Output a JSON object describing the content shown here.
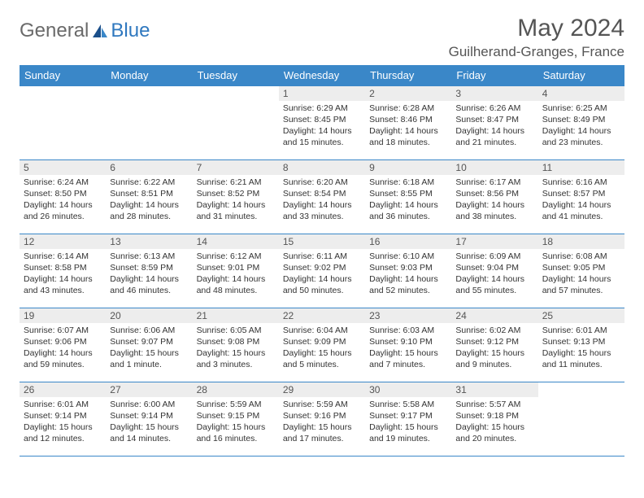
{
  "brand": {
    "part1": "General",
    "part2": "Blue"
  },
  "title": "May 2024",
  "location": "Guilherand-Granges, France",
  "colors": {
    "header_bg": "#3a87c8",
    "header_text": "#ffffff",
    "daynum_bg": "#ededed",
    "border": "#3a87c8",
    "brand_accent": "#2f78bf",
    "text": "#333333"
  },
  "calendar": {
    "type": "table",
    "day_labels": [
      "Sunday",
      "Monday",
      "Tuesday",
      "Wednesday",
      "Thursday",
      "Friday",
      "Saturday"
    ],
    "weeks": [
      [
        null,
        null,
        null,
        {
          "n": "1",
          "sr": "6:29 AM",
          "ss": "8:45 PM",
          "dl": "14 hours and 15 minutes."
        },
        {
          "n": "2",
          "sr": "6:28 AM",
          "ss": "8:46 PM",
          "dl": "14 hours and 18 minutes."
        },
        {
          "n": "3",
          "sr": "6:26 AM",
          "ss": "8:47 PM",
          "dl": "14 hours and 21 minutes."
        },
        {
          "n": "4",
          "sr": "6:25 AM",
          "ss": "8:49 PM",
          "dl": "14 hours and 23 minutes."
        }
      ],
      [
        {
          "n": "5",
          "sr": "6:24 AM",
          "ss": "8:50 PM",
          "dl": "14 hours and 26 minutes."
        },
        {
          "n": "6",
          "sr": "6:22 AM",
          "ss": "8:51 PM",
          "dl": "14 hours and 28 minutes."
        },
        {
          "n": "7",
          "sr": "6:21 AM",
          "ss": "8:52 PM",
          "dl": "14 hours and 31 minutes."
        },
        {
          "n": "8",
          "sr": "6:20 AM",
          "ss": "8:54 PM",
          "dl": "14 hours and 33 minutes."
        },
        {
          "n": "9",
          "sr": "6:18 AM",
          "ss": "8:55 PM",
          "dl": "14 hours and 36 minutes."
        },
        {
          "n": "10",
          "sr": "6:17 AM",
          "ss": "8:56 PM",
          "dl": "14 hours and 38 minutes."
        },
        {
          "n": "11",
          "sr": "6:16 AM",
          "ss": "8:57 PM",
          "dl": "14 hours and 41 minutes."
        }
      ],
      [
        {
          "n": "12",
          "sr": "6:14 AM",
          "ss": "8:58 PM",
          "dl": "14 hours and 43 minutes."
        },
        {
          "n": "13",
          "sr": "6:13 AM",
          "ss": "8:59 PM",
          "dl": "14 hours and 46 minutes."
        },
        {
          "n": "14",
          "sr": "6:12 AM",
          "ss": "9:01 PM",
          "dl": "14 hours and 48 minutes."
        },
        {
          "n": "15",
          "sr": "6:11 AM",
          "ss": "9:02 PM",
          "dl": "14 hours and 50 minutes."
        },
        {
          "n": "16",
          "sr": "6:10 AM",
          "ss": "9:03 PM",
          "dl": "14 hours and 52 minutes."
        },
        {
          "n": "17",
          "sr": "6:09 AM",
          "ss": "9:04 PM",
          "dl": "14 hours and 55 minutes."
        },
        {
          "n": "18",
          "sr": "6:08 AM",
          "ss": "9:05 PM",
          "dl": "14 hours and 57 minutes."
        }
      ],
      [
        {
          "n": "19",
          "sr": "6:07 AM",
          "ss": "9:06 PM",
          "dl": "14 hours and 59 minutes."
        },
        {
          "n": "20",
          "sr": "6:06 AM",
          "ss": "9:07 PM",
          "dl": "15 hours and 1 minute."
        },
        {
          "n": "21",
          "sr": "6:05 AM",
          "ss": "9:08 PM",
          "dl": "15 hours and 3 minutes."
        },
        {
          "n": "22",
          "sr": "6:04 AM",
          "ss": "9:09 PM",
          "dl": "15 hours and 5 minutes."
        },
        {
          "n": "23",
          "sr": "6:03 AM",
          "ss": "9:10 PM",
          "dl": "15 hours and 7 minutes."
        },
        {
          "n": "24",
          "sr": "6:02 AM",
          "ss": "9:12 PM",
          "dl": "15 hours and 9 minutes."
        },
        {
          "n": "25",
          "sr": "6:01 AM",
          "ss": "9:13 PM",
          "dl": "15 hours and 11 minutes."
        }
      ],
      [
        {
          "n": "26",
          "sr": "6:01 AM",
          "ss": "9:14 PM",
          "dl": "15 hours and 12 minutes."
        },
        {
          "n": "27",
          "sr": "6:00 AM",
          "ss": "9:14 PM",
          "dl": "15 hours and 14 minutes."
        },
        {
          "n": "28",
          "sr": "5:59 AM",
          "ss": "9:15 PM",
          "dl": "15 hours and 16 minutes."
        },
        {
          "n": "29",
          "sr": "5:59 AM",
          "ss": "9:16 PM",
          "dl": "15 hours and 17 minutes."
        },
        {
          "n": "30",
          "sr": "5:58 AM",
          "ss": "9:17 PM",
          "dl": "15 hours and 19 minutes."
        },
        {
          "n": "31",
          "sr": "5:57 AM",
          "ss": "9:18 PM",
          "dl": "15 hours and 20 minutes."
        },
        null
      ]
    ],
    "labels": {
      "sunrise": "Sunrise:",
      "sunset": "Sunset:",
      "daylight": "Daylight:"
    }
  }
}
